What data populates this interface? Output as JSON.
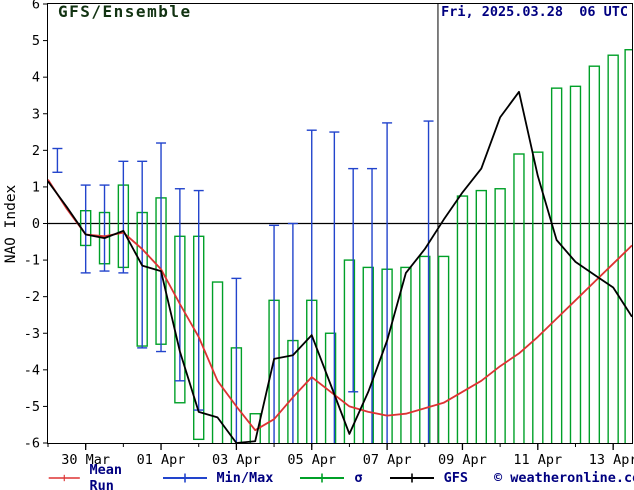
{
  "header": {
    "title": "GFS/Ensemble",
    "datetime": "Fri, 2025.03.28  06 UTC"
  },
  "ylabel": "NAO Index",
  "watermark": "© weatheronline.co.uk",
  "colors": {
    "mean": "#dd3333",
    "minmax": "#2244cc",
    "sigma": "#00a028",
    "gfs": "#000000",
    "navy_text": "#000080",
    "title_text": "#123312"
  },
  "legend": [
    {
      "label": "Mean Run",
      "color_key": "mean"
    },
    {
      "label": "Min/Max",
      "color_key": "minmax"
    },
    {
      "label": "σ",
      "color_key": "sigma"
    },
    {
      "label": "GFS",
      "color_key": "gfs"
    }
  ],
  "chart_data": {
    "type": "line",
    "title": "GFS/Ensemble NAO Index ensemble forecast",
    "xlabel": "",
    "ylabel": "NAO Index",
    "ylim": [
      -6,
      6
    ],
    "yticks": [
      6,
      5,
      4,
      3,
      2,
      1,
      0,
      -1,
      -2,
      -3,
      -4,
      -5,
      -6
    ],
    "x_domain_days": [
      0,
      15.5
    ],
    "xticks": [
      {
        "t": 1,
        "label": "30 Mar"
      },
      {
        "t": 3,
        "label": "01 Apr"
      },
      {
        "t": 5,
        "label": "03 Apr"
      },
      {
        "t": 7,
        "label": "05 Apr"
      },
      {
        "t": 9,
        "label": "07 Apr"
      },
      {
        "t": 11,
        "label": "09 Apr"
      },
      {
        "t": 13,
        "label": "11 Apr"
      },
      {
        "t": 15,
        "label": "13 Apr"
      }
    ],
    "zero_line": 0,
    "divider_t": 10.35,
    "grid": false,
    "legend_position": "bottom",
    "series": [
      {
        "name": "Mean Run",
        "color_key": "mean",
        "t_start": 0,
        "t_step": 0.5,
        "values": [
          1.2,
          0.4,
          -0.3,
          -0.35,
          -0.25,
          -0.7,
          -1.25,
          -2.2,
          -3.1,
          -4.3,
          -5.0,
          -5.65,
          -5.35,
          -4.75,
          -4.2,
          -4.6,
          -5.0,
          -5.15,
          -5.25,
          -5.2,
          -5.05,
          -4.9,
          -4.6,
          -4.3,
          -3.9,
          -3.55,
          -3.1,
          -2.6,
          -2.1,
          -1.6,
          -1.1,
          -0.6
        ]
      },
      {
        "name": "GFS",
        "color_key": "gfs",
        "t_start": 0,
        "t_step": 0.5,
        "values": [
          1.15,
          0.45,
          -0.3,
          -0.4,
          -0.2,
          -1.15,
          -1.3,
          -3.5,
          -5.15,
          -5.3,
          -6.0,
          -5.95,
          -3.7,
          -3.6,
          -3.05,
          -4.4,
          -5.75,
          -4.6,
          -3.2,
          -1.35,
          -0.7,
          0.1,
          0.85,
          1.5,
          2.9,
          3.6,
          1.3,
          -0.45,
          -1.05,
          -1.4,
          -1.75,
          -2.55
        ]
      }
    ],
    "minmax_bars": [
      {
        "t": 0.25,
        "lo": 1.4,
        "hi": 2.05
      },
      {
        "t": 1.0,
        "lo": -1.35,
        "hi": 1.05
      },
      {
        "t": 1.5,
        "lo": -1.3,
        "hi": 1.05
      },
      {
        "t": 2.0,
        "lo": -1.35,
        "hi": 1.7
      },
      {
        "t": 2.5,
        "lo": -3.4,
        "hi": 1.7
      },
      {
        "t": 3.0,
        "lo": -3.5,
        "hi": 2.2
      },
      {
        "t": 3.5,
        "lo": -4.3,
        "hi": 0.95
      },
      {
        "t": 4.0,
        "lo": -5.1,
        "hi": 0.9
      },
      {
        "t": 5.0,
        "lo": -6.3,
        "hi": -1.5
      },
      {
        "t": 6.0,
        "lo": -6.3,
        "hi": -0.05
      },
      {
        "t": 6.5,
        "lo": -6.3,
        "hi": 0.0
      },
      {
        "t": 7.0,
        "lo": -6.3,
        "hi": 2.55
      },
      {
        "t": 7.6,
        "lo": -6.3,
        "hi": 2.5
      },
      {
        "t": 8.1,
        "lo": -4.6,
        "hi": 1.5
      },
      {
        "t": 8.6,
        "lo": -6.3,
        "hi": 1.5
      },
      {
        "t": 9.0,
        "lo": -6.3,
        "hi": 2.75
      },
      {
        "t": 10.1,
        "lo": -6.3,
        "hi": 2.8
      }
    ],
    "sigma_boxes": [
      {
        "t": 1.0,
        "lo": -0.6,
        "hi": 0.35
      },
      {
        "t": 1.5,
        "lo": -1.1,
        "hi": 0.3
      },
      {
        "t": 2.0,
        "lo": -1.2,
        "hi": 1.05
      },
      {
        "t": 2.5,
        "lo": -3.35,
        "hi": 0.3
      },
      {
        "t": 3.0,
        "lo": -3.3,
        "hi": 0.7
      },
      {
        "t": 3.5,
        "lo": -4.9,
        "hi": -0.35
      },
      {
        "t": 4.0,
        "lo": -5.9,
        "hi": -0.35
      },
      {
        "t": 4.5,
        "lo": -6.3,
        "hi": -1.6
      },
      {
        "t": 5.0,
        "lo": -6.3,
        "hi": -3.4
      },
      {
        "t": 5.5,
        "lo": -6.3,
        "hi": -5.2
      },
      {
        "t": 6.0,
        "lo": -6.3,
        "hi": -2.1
      },
      {
        "t": 6.5,
        "lo": -6.3,
        "hi": -3.2
      },
      {
        "t": 7.0,
        "lo": -6.3,
        "hi": -2.1
      },
      {
        "t": 7.5,
        "lo": -6.3,
        "hi": -3.0
      },
      {
        "t": 8.0,
        "lo": -6.3,
        "hi": -1.0
      },
      {
        "t": 8.5,
        "lo": -6.3,
        "hi": -1.2
      },
      {
        "t": 9.0,
        "lo": -6.3,
        "hi": -1.25
      },
      {
        "t": 9.5,
        "lo": -6.3,
        "hi": -1.2
      },
      {
        "t": 10.0,
        "lo": -6.3,
        "hi": -0.9
      },
      {
        "t": 10.5,
        "lo": -6.3,
        "hi": -0.9
      },
      {
        "t": 11.0,
        "lo": -6.3,
        "hi": 0.75
      },
      {
        "t": 11.5,
        "lo": -6.3,
        "hi": 0.9
      },
      {
        "t": 12.0,
        "lo": -6.3,
        "hi": 0.95
      },
      {
        "t": 12.5,
        "lo": -6.3,
        "hi": 1.9
      },
      {
        "t": 13.0,
        "lo": -6.3,
        "hi": 1.95
      },
      {
        "t": 13.5,
        "lo": -6.3,
        "hi": 3.7
      },
      {
        "t": 14.0,
        "lo": -6.3,
        "hi": 3.75
      },
      {
        "t": 14.5,
        "lo": -6.3,
        "hi": 4.3
      },
      {
        "t": 15.0,
        "lo": -6.3,
        "hi": 4.6
      },
      {
        "t": 15.45,
        "lo": -6.3,
        "hi": 4.75
      }
    ]
  }
}
